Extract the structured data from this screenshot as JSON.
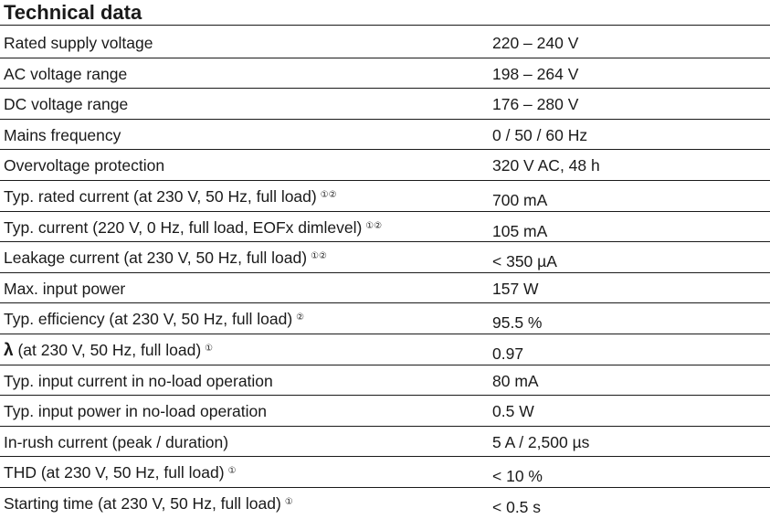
{
  "title": "Technical data",
  "rows": [
    {
      "label": "Rated supply voltage",
      "note": "",
      "value": "220 – 240 V"
    },
    {
      "label": "AC voltage range",
      "note": "",
      "value": "198 – 264 V"
    },
    {
      "label": "DC voltage range",
      "note": "",
      "value": "176 – 280 V"
    },
    {
      "label": "Mains frequency",
      "note": "",
      "value": "0 / 50 / 60 Hz"
    },
    {
      "label": "Overvoltage protection",
      "note": "",
      "value": "320 V AC, 48 h"
    },
    {
      "label": "Typ. rated current (at 230 V, 50 Hz, full load)",
      "note": "①②",
      "value": "700 mA"
    },
    {
      "label": "Typ. current (220 V, 0 Hz, full load, EOFx dimlevel)",
      "note": "①②",
      "value": "105 mA"
    },
    {
      "label": "Leakage current (at 230 V, 50 Hz, full load)",
      "note": "①②",
      "value": "< 350 µA"
    },
    {
      "label": "Max. input power",
      "note": "",
      "value": "157 W"
    },
    {
      "label": "Typ. efficiency (at 230 V, 50 Hz, full load)",
      "note": "②",
      "value": "95.5 %"
    },
    {
      "symbol": "λ",
      "label": " (at 230 V, 50 Hz, full load)",
      "note": "①",
      "value": "0.97"
    },
    {
      "label": "Typ. input current in no-load operation",
      "note": "",
      "value": "80 mA"
    },
    {
      "label": "Typ. input power in no-load operation",
      "note": "",
      "value": "0.5 W"
    },
    {
      "label": "In-rush current (peak / duration)",
      "note": "",
      "value": "5 A / 2,500 µs"
    },
    {
      "label": "THD (at 230 V, 50 Hz, full load)",
      "note": "①",
      "value": "< 10 %"
    },
    {
      "label": "Starting time (at 230 V, 50 Hz, full load)",
      "note": "①",
      "value": "< 0.5 s"
    }
  ]
}
